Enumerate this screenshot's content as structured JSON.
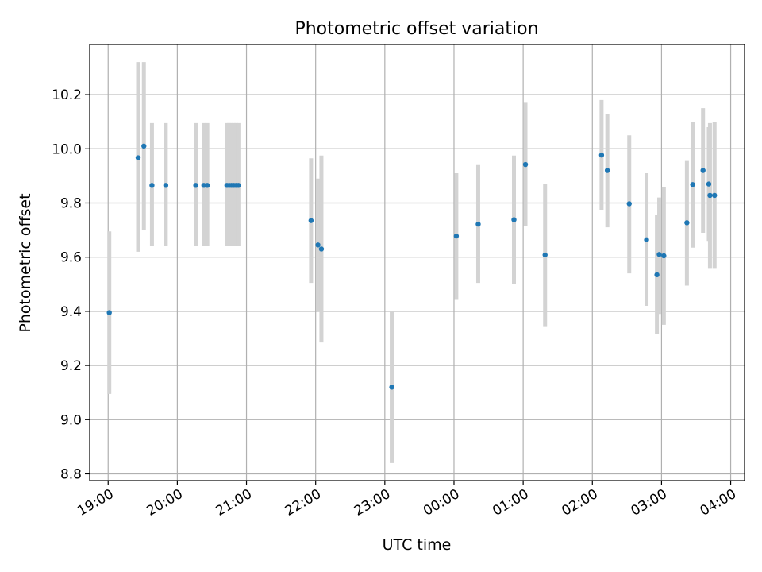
{
  "chart_data": {
    "type": "scatter",
    "title": "Photometric offset variation",
    "xlabel": "UTC time",
    "ylabel": "Photometric offset",
    "grid": true,
    "ylim": [
      8.775,
      10.385
    ],
    "xlim": [
      "18:44",
      "04:12"
    ],
    "y_ticks": [
      "8.8",
      "9.0",
      "9.2",
      "9.4",
      "9.6",
      "9.8",
      "10.0",
      "10.2"
    ],
    "x_ticks": [
      "19:00",
      "20:00",
      "21:00",
      "22:00",
      "23:00",
      "00:00",
      "01:00",
      "02:00",
      "03:00",
      "04:00"
    ],
    "colors": {
      "points": "#1f77b4",
      "error_bars": "#d3d3d3",
      "grid": "#b0b0b0"
    },
    "points": [
      {
        "time": "19:01",
        "y": 9.395,
        "ylow": 9.095,
        "yhigh": 9.695
      },
      {
        "time": "19:26",
        "y": 9.967,
        "ylow": 9.62,
        "yhigh": 10.32
      },
      {
        "time": "19:31",
        "y": 10.01,
        "ylow": 9.7,
        "yhigh": 10.32
      },
      {
        "time": "19:38",
        "y": 9.865,
        "ylow": 9.64,
        "yhigh": 10.095
      },
      {
        "time": "19:50",
        "y": 9.865,
        "ylow": 9.64,
        "yhigh": 10.095
      },
      {
        "time": "20:16",
        "y": 9.865,
        "ylow": 9.64,
        "yhigh": 10.095
      },
      {
        "time": "20:23",
        "y": 9.865,
        "ylow": 9.64,
        "yhigh": 10.095
      },
      {
        "time": "20:26",
        "y": 9.865,
        "ylow": 9.64,
        "yhigh": 10.095
      },
      {
        "time": "20:43",
        "y": 9.865,
        "ylow": 9.64,
        "yhigh": 10.095
      },
      {
        "time": "20:45",
        "y": 9.865,
        "ylow": 9.64,
        "yhigh": 10.095
      },
      {
        "time": "20:47",
        "y": 9.865,
        "ylow": 9.64,
        "yhigh": 10.095
      },
      {
        "time": "20:49",
        "y": 9.865,
        "ylow": 9.64,
        "yhigh": 10.095
      },
      {
        "time": "20:51",
        "y": 9.865,
        "ylow": 9.64,
        "yhigh": 10.095
      },
      {
        "time": "20:53",
        "y": 9.865,
        "ylow": 9.64,
        "yhigh": 10.095
      },
      {
        "time": "21:56",
        "y": 9.735,
        "ylow": 9.505,
        "yhigh": 9.965
      },
      {
        "time": "22:02",
        "y": 9.645,
        "ylow": 9.4,
        "yhigh": 9.89
      },
      {
        "time": "22:05",
        "y": 9.63,
        "ylow": 9.285,
        "yhigh": 9.975
      },
      {
        "time": "23:06",
        "y": 9.12,
        "ylow": 8.84,
        "yhigh": 9.4
      },
      {
        "time": "00:02",
        "y": 9.678,
        "ylow": 9.445,
        "yhigh": 9.91
      },
      {
        "time": "00:21",
        "y": 9.722,
        "ylow": 9.505,
        "yhigh": 9.94
      },
      {
        "time": "00:52",
        "y": 9.738,
        "ylow": 9.5,
        "yhigh": 9.975
      },
      {
        "time": "01:02",
        "y": 9.942,
        "ylow": 9.715,
        "yhigh": 10.17
      },
      {
        "time": "01:19",
        "y": 9.608,
        "ylow": 9.345,
        "yhigh": 9.87
      },
      {
        "time": "02:08",
        "y": 9.977,
        "ylow": 9.775,
        "yhigh": 10.18
      },
      {
        "time": "02:13",
        "y": 9.92,
        "ylow": 9.71,
        "yhigh": 10.13
      },
      {
        "time": "02:32",
        "y": 9.797,
        "ylow": 9.54,
        "yhigh": 10.05
      },
      {
        "time": "02:47",
        "y": 9.664,
        "ylow": 9.42,
        "yhigh": 9.91
      },
      {
        "time": "02:56",
        "y": 9.535,
        "ylow": 9.315,
        "yhigh": 9.755
      },
      {
        "time": "02:58",
        "y": 9.61,
        "ylow": 9.39,
        "yhigh": 9.82
      },
      {
        "time": "03:02",
        "y": 9.605,
        "ylow": 9.35,
        "yhigh": 9.86
      },
      {
        "time": "03:22",
        "y": 9.727,
        "ylow": 9.495,
        "yhigh": 9.955
      },
      {
        "time": "03:27",
        "y": 9.868,
        "ylow": 9.635,
        "yhigh": 10.1
      },
      {
        "time": "03:36",
        "y": 9.92,
        "ylow": 9.69,
        "yhigh": 10.15
      },
      {
        "time": "03:41",
        "y": 9.87,
        "ylow": 9.66,
        "yhigh": 10.08
      },
      {
        "time": "03:42",
        "y": 9.828,
        "ylow": 9.56,
        "yhigh": 10.095
      },
      {
        "time": "03:46",
        "y": 9.828,
        "ylow": 9.56,
        "yhigh": 10.1
      }
    ]
  }
}
